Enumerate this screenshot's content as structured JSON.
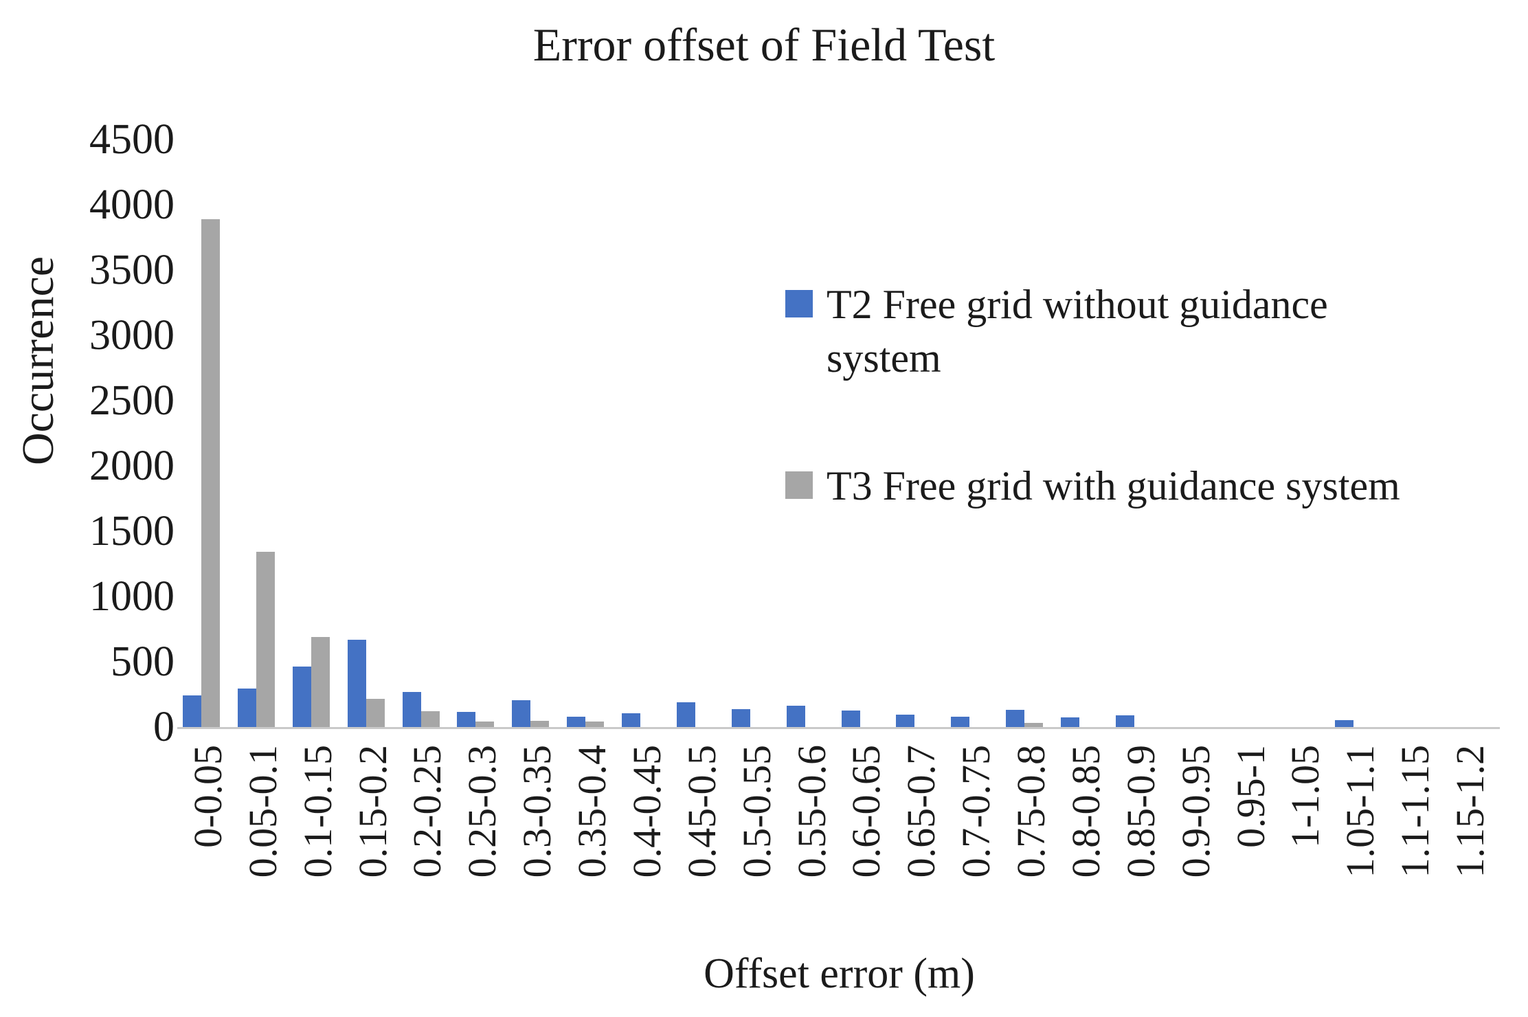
{
  "title": "Error offset of Field Test",
  "y_axis": {
    "label": "Occurrence",
    "ticks": [
      4500,
      4000,
      3500,
      3000,
      2500,
      2000,
      1500,
      1000,
      500,
      0
    ]
  },
  "x_axis": {
    "label": "Offset error (m)"
  },
  "legend": [
    {
      "label": "T2 Free grid without guidance system",
      "color": "#4472C4"
    },
    {
      "label": "T3 Free grid with guidance system",
      "color": "#A6A6A6"
    }
  ],
  "chart_data": {
    "type": "bar",
    "title": "Error offset of Field Test",
    "xlabel": "Offset error (m)",
    "ylabel": "Occurrence",
    "ylim": [
      0,
      4500
    ],
    "ytick_step": 500,
    "yticks": [
      4500,
      4000,
      3500,
      3000,
      2500,
      2000,
      1500,
      1000,
      500,
      0
    ],
    "grid": false,
    "legend_position": "right-center",
    "categories": [
      "0-0.05",
      "0.05-0.1",
      "0.1-0.15",
      "0.15-0.2",
      "0.2-0.25",
      "0.25-0.3",
      "0.3-0.35",
      "0.35-0.4",
      "0.4-0.45",
      "0.45-0.5",
      "0.5-0.55",
      "0.55-0.6",
      "0.6-0.65",
      "0.65-0.7",
      "0.7-0.75",
      "0.75-0.8",
      "0.8-0.85",
      "0.85-0.9",
      "0.9-0.95",
      "0.95-1",
      "1-1.05",
      "1.05-1.1",
      "1.1-1.15",
      "1.15-1.2"
    ],
    "series": [
      {
        "name": "T2 Free grid without guidance system",
        "color": "#4472C4",
        "values": [
          240,
          295,
          465,
          670,
          270,
          115,
          205,
          80,
          105,
          190,
          135,
          165,
          125,
          95,
          80,
          130,
          75,
          90,
          0,
          0,
          0,
          55,
          0,
          0
        ]
      },
      {
        "name": "T3 Free grid with guidance system",
        "color": "#A6A6A6",
        "values": [
          3890,
          1340,
          690,
          215,
          120,
          40,
          45,
          40,
          0,
          0,
          0,
          0,
          0,
          0,
          0,
          30,
          0,
          0,
          0,
          0,
          0,
          0,
          0,
          0
        ]
      }
    ]
  }
}
